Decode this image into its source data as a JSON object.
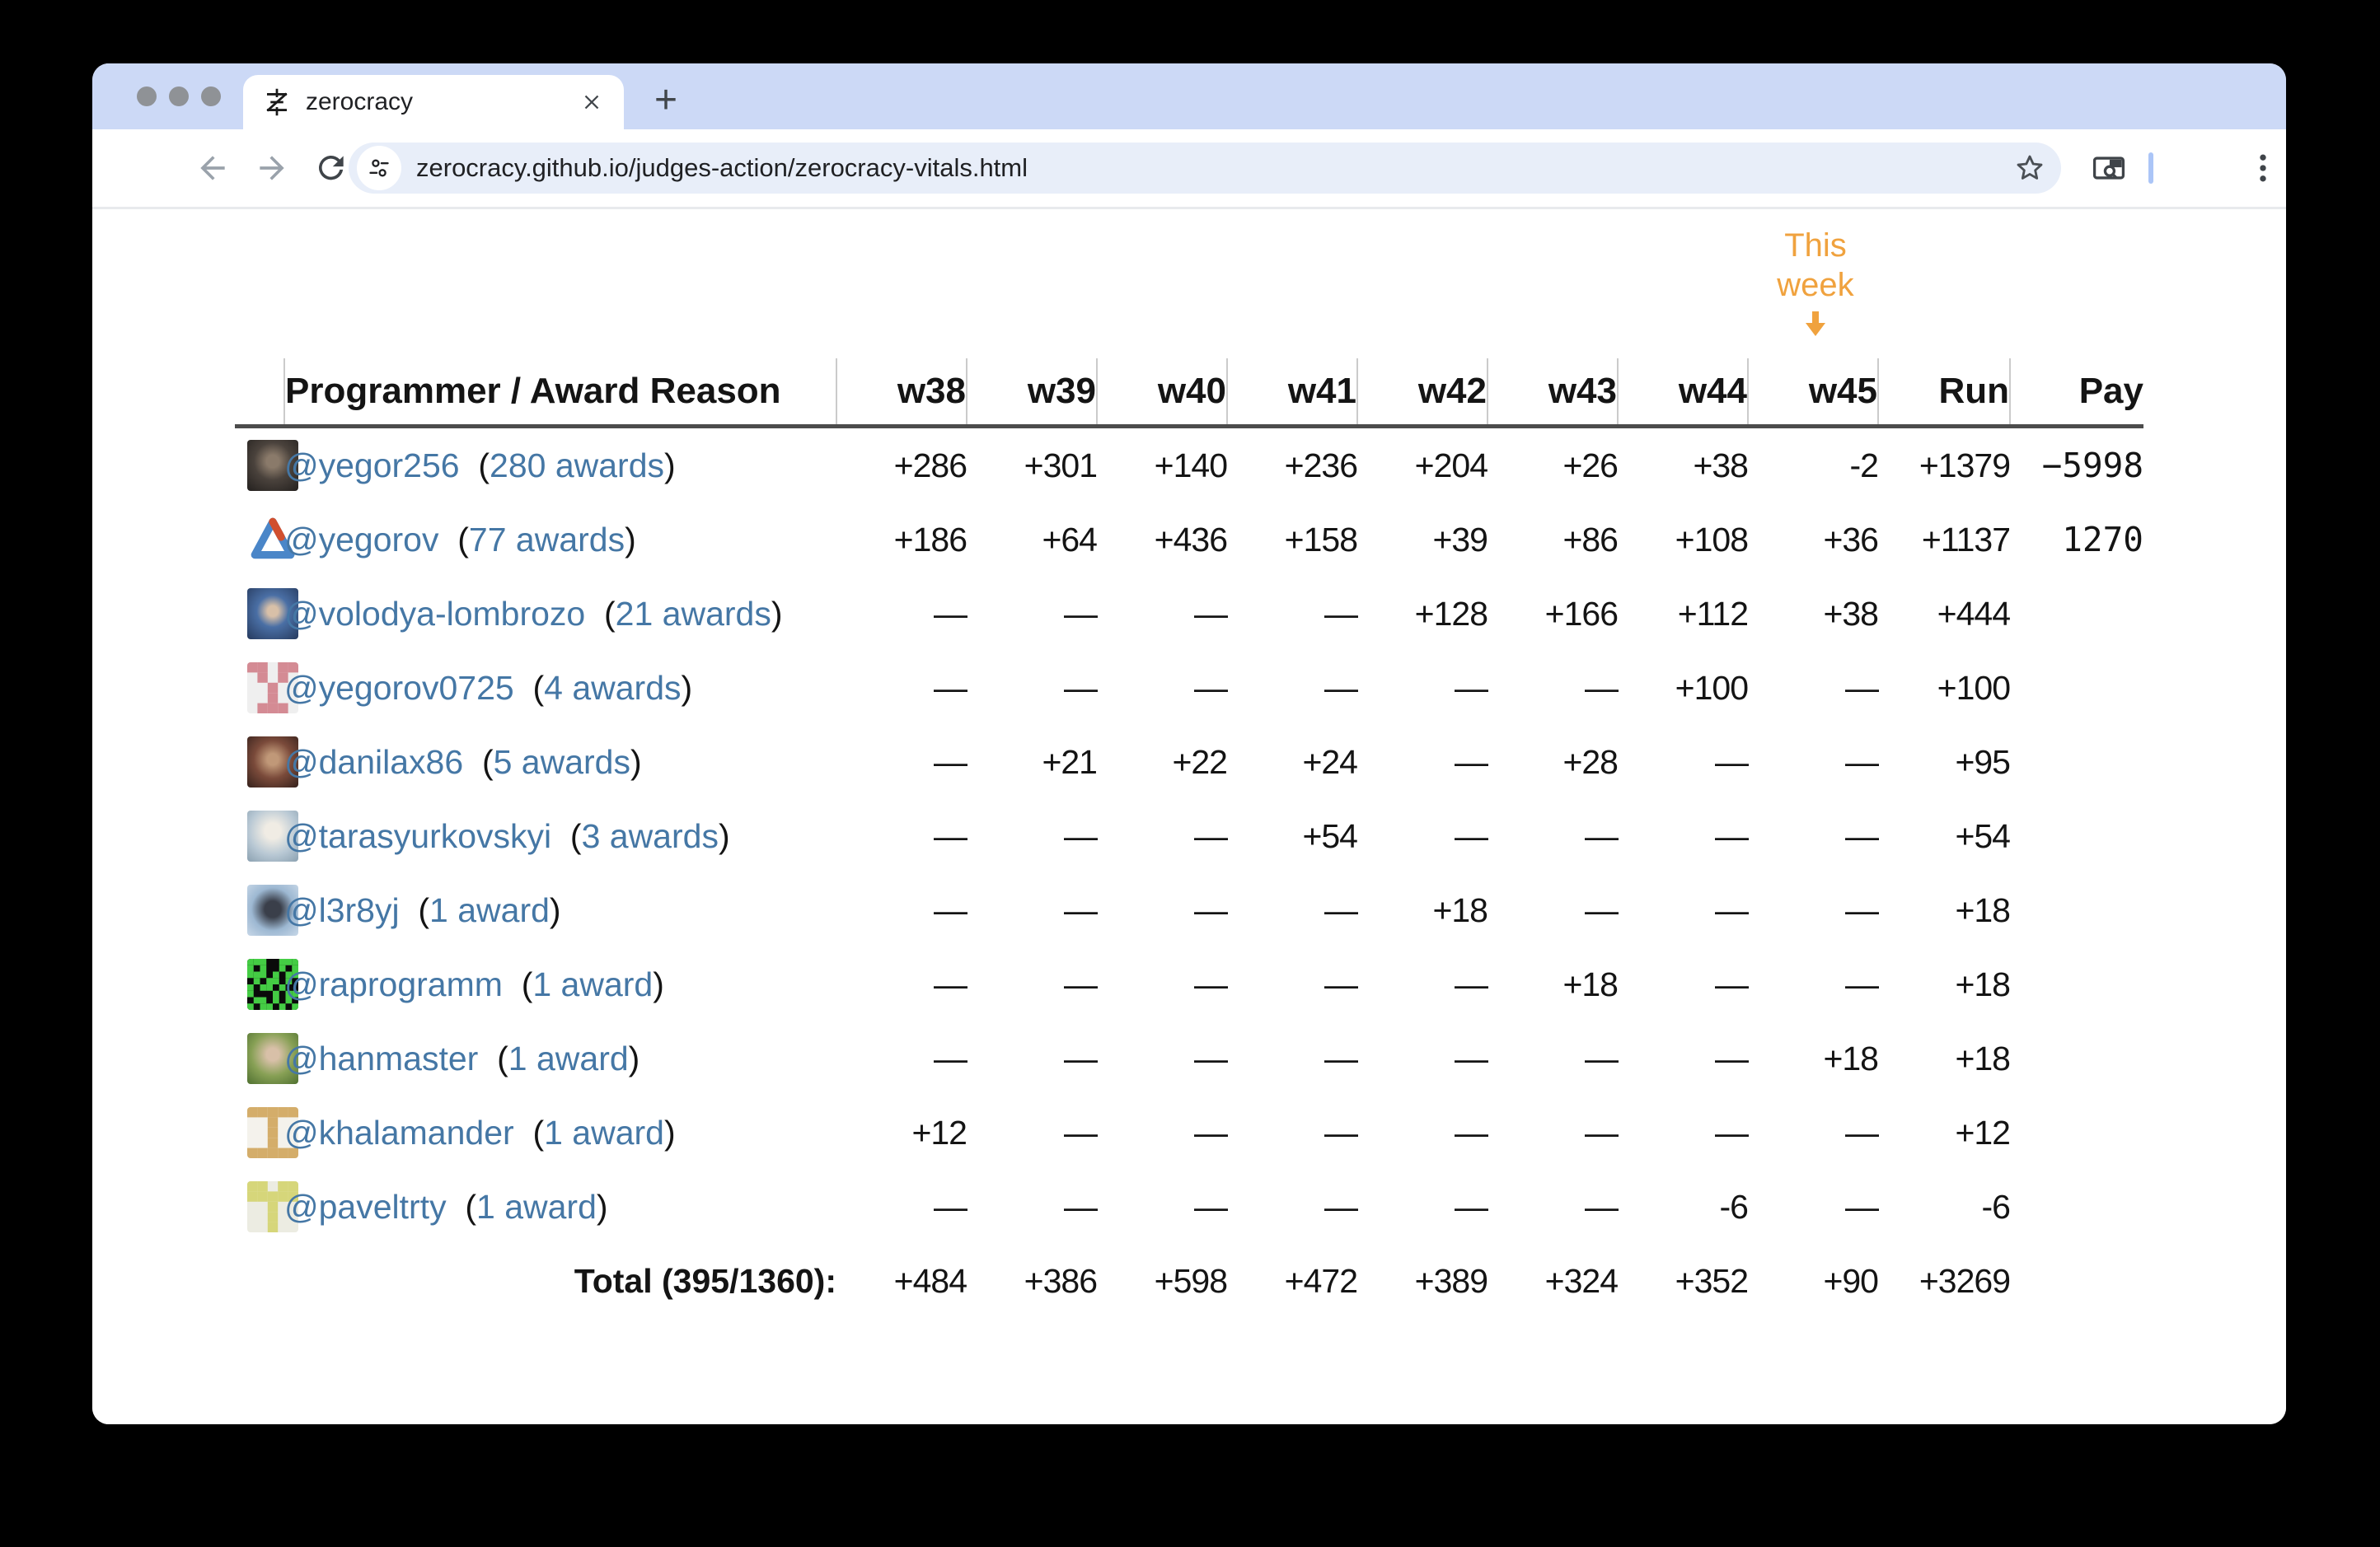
{
  "browser": {
    "tab": {
      "title": "zerocracy"
    },
    "new_tab_label": "+",
    "url": "zerocracy.github.io/judges-action/zerocracy-vitals.html",
    "icons": [
      "zerocracy-favicon-icon",
      "close-icon",
      "new-tab-icon",
      "back-icon",
      "forward-icon",
      "reload-icon",
      "home-icon",
      "site-settings-icon",
      "bookmark-star-icon",
      "side-panel-search-icon",
      "menu-kebab-icon"
    ],
    "colors": {
      "tabstrip": "#ccd9f6",
      "url_pill": "#e8eef9",
      "toolbar_divider": "#abc5f7"
    }
  },
  "page": {
    "annotation": {
      "line1": "This",
      "line2": "week",
      "arrow": "down-arrow-icon",
      "color": "#f0a23e"
    },
    "colors": {
      "positive": "#2c6b2c",
      "negative": "#8f1d12",
      "dash": "#c9c9c9",
      "link": "#4577a5"
    },
    "table": {
      "paren_open": "(",
      "paren_close": ")",
      "header": {
        "programmer": "Programmer / Award Reason",
        "weeks": [
          "w38",
          "w39",
          "w40",
          "w41",
          "w42",
          "w43",
          "w44",
          "w45"
        ],
        "run": "Run",
        "pay": "Pay"
      },
      "rows": [
        {
          "username": "@yegor256",
          "awards": "280 awards",
          "avatar": {
            "type": "photo",
            "bg": "radial-gradient(circle at 50% 42%, #8a7a6a 0 16%, #4a423c 48%, #23201e 100%)"
          },
          "values": [
            "+286",
            "+301",
            "+140",
            "+236",
            "+204",
            "+26",
            "+38",
            "-2"
          ],
          "run": "+1379",
          "pay": "−5998"
        },
        {
          "username": "@yegorov",
          "awards": "77 awards",
          "avatar": {
            "type": "logo"
          },
          "values": [
            "+186",
            "+64",
            "+436",
            "+158",
            "+39",
            "+86",
            "+108",
            "+36"
          ],
          "run": "+1137",
          "pay": "1270"
        },
        {
          "username": "@volodya-lombrozo",
          "awards": "21 awards",
          "avatar": {
            "type": "photo",
            "bg": "radial-gradient(circle at 50% 45%, #d8c0a8 0 14%, #4a6fa5 42%, #263a5e 100%)"
          },
          "values": [
            "—",
            "—",
            "—",
            "—",
            "+128",
            "+166",
            "+112",
            "+38"
          ],
          "run": "+444",
          "pay": ""
        },
        {
          "username": "@yegorov0725",
          "awards": "4 awards",
          "avatar": {
            "type": "identicon",
            "bg": "#efefef",
            "fg": "#d48b94",
            "grid": 5,
            "cells": [
              [
                0,
                0
              ],
              [
                0,
                1
              ],
              [
                0,
                3
              ],
              [
                0,
                4
              ],
              [
                1,
                1
              ],
              [
                1,
                3
              ],
              [
                2,
                2
              ],
              [
                3,
                2
              ],
              [
                4,
                1
              ],
              [
                4,
                2
              ],
              [
                4,
                3
              ]
            ]
          },
          "values": [
            "—",
            "—",
            "—",
            "—",
            "—",
            "—",
            "+100",
            "—"
          ],
          "run": "+100",
          "pay": ""
        },
        {
          "username": "@danilax86",
          "awards": "5 awards",
          "avatar": {
            "type": "photo",
            "bg": "radial-gradient(circle at 50% 45%, #c09878 0 15%, #7a4a3a 50%, #35211c 100%)"
          },
          "values": [
            "—",
            "+21",
            "+22",
            "+24",
            "—",
            "+28",
            "—",
            "—"
          ],
          "run": "+95",
          "pay": ""
        },
        {
          "username": "@tarasyurkovskyi",
          "awards": "3 awards",
          "avatar": {
            "type": "photo",
            "bg": "radial-gradient(circle at 50% 40%, #f0ece4 0 20%, #b8c8d4 60%, #8aa0b0 100%)"
          },
          "values": [
            "—",
            "—",
            "—",
            "+54",
            "—",
            "—",
            "—",
            "—"
          ],
          "run": "+54",
          "pay": ""
        },
        {
          "username": "@l3r8yj",
          "awards": "1 award",
          "avatar": {
            "type": "photo",
            "bg": "radial-gradient(circle at 50% 48%, #3a3f4a 0 22%, #9db8d2 58%, #c8d8e8 100%)"
          },
          "values": [
            "—",
            "—",
            "—",
            "—",
            "+18",
            "—",
            "—",
            "—"
          ],
          "run": "+18",
          "pay": ""
        },
        {
          "username": "@raprogramm",
          "awards": "1 award",
          "avatar": {
            "type": "identicon",
            "bg": "#0a0a0a",
            "fg": "#44cc44",
            "grid": 8,
            "cells": [
              [
                0,
                0
              ],
              [
                0,
                1
              ],
              [
                0,
                2
              ],
              [
                0,
                5
              ],
              [
                0,
                6
              ],
              [
                0,
                7
              ],
              [
                1,
                0
              ],
              [
                1,
                2
              ],
              [
                1,
                5
              ],
              [
                1,
                7
              ],
              [
                2,
                0
              ],
              [
                2,
                1
              ],
              [
                2,
                2
              ],
              [
                2,
                4
              ],
              [
                2,
                6
              ],
              [
                2,
                7
              ],
              [
                3,
                1
              ],
              [
                3,
                3
              ],
              [
                3,
                4
              ],
              [
                3,
                6
              ],
              [
                4,
                0
              ],
              [
                4,
                2
              ],
              [
                4,
                3
              ],
              [
                4,
                5
              ],
              [
                5,
                0
              ],
              [
                5,
                4
              ],
              [
                5,
                6
              ],
              [
                5,
                7
              ],
              [
                6,
                1
              ],
              [
                6,
                2
              ],
              [
                6,
                4
              ],
              [
                6,
                6
              ],
              [
                7,
                0
              ],
              [
                7,
                2
              ],
              [
                7,
                3
              ],
              [
                7,
                5
              ],
              [
                7,
                7
              ]
            ]
          },
          "values": [
            "—",
            "—",
            "—",
            "—",
            "—",
            "+18",
            "—",
            "—"
          ],
          "run": "+18",
          "pay": ""
        },
        {
          "username": "@hanmaster",
          "awards": "1 award",
          "avatar": {
            "type": "photo",
            "bg": "radial-gradient(circle at 50% 42%, #d8c0a8 0 16%, #87a055 55%, #4f7030 100%)"
          },
          "values": [
            "—",
            "—",
            "—",
            "—",
            "—",
            "—",
            "—",
            "+18"
          ],
          "run": "+18",
          "pay": ""
        },
        {
          "username": "@khalamander",
          "awards": "1 award",
          "avatar": {
            "type": "identicon",
            "bg": "#f4f2ec",
            "fg": "#d4ad6a",
            "grid": 5,
            "cells": [
              [
                0,
                0
              ],
              [
                0,
                1
              ],
              [
                0,
                2
              ],
              [
                0,
                3
              ],
              [
                0,
                4
              ],
              [
                1,
                2
              ],
              [
                2,
                2
              ],
              [
                3,
                2
              ],
              [
                4,
                0
              ],
              [
                4,
                1
              ],
              [
                4,
                2
              ],
              [
                4,
                3
              ],
              [
                4,
                4
              ]
            ]
          },
          "values": [
            "+12",
            "—",
            "—",
            "—",
            "—",
            "—",
            "—",
            "—"
          ],
          "run": "+12",
          "pay": ""
        },
        {
          "username": "@paveltrty",
          "awards": "1 award",
          "avatar": {
            "type": "identicon",
            "bg": "#ecece2",
            "fg": "#d6d67a",
            "grid": 5,
            "cells": [
              [
                0,
                0
              ],
              [
                0,
                1
              ],
              [
                0,
                3
              ],
              [
                0,
                4
              ],
              [
                1,
                0
              ],
              [
                1,
                1
              ],
              [
                1,
                2
              ],
              [
                1,
                3
              ],
              [
                1,
                4
              ],
              [
                2,
                2
              ],
              [
                3,
                2
              ],
              [
                4,
                2
              ]
            ]
          },
          "values": [
            "—",
            "—",
            "—",
            "—",
            "—",
            "—",
            "-6",
            "—"
          ],
          "run": "-6",
          "pay": ""
        }
      ],
      "total": {
        "label": "Total (395/1360):",
        "values": [
          "+484",
          "+386",
          "+598",
          "+472",
          "+389",
          "+324",
          "+352",
          "+90"
        ],
        "run": "+3269",
        "pay": ""
      }
    }
  }
}
